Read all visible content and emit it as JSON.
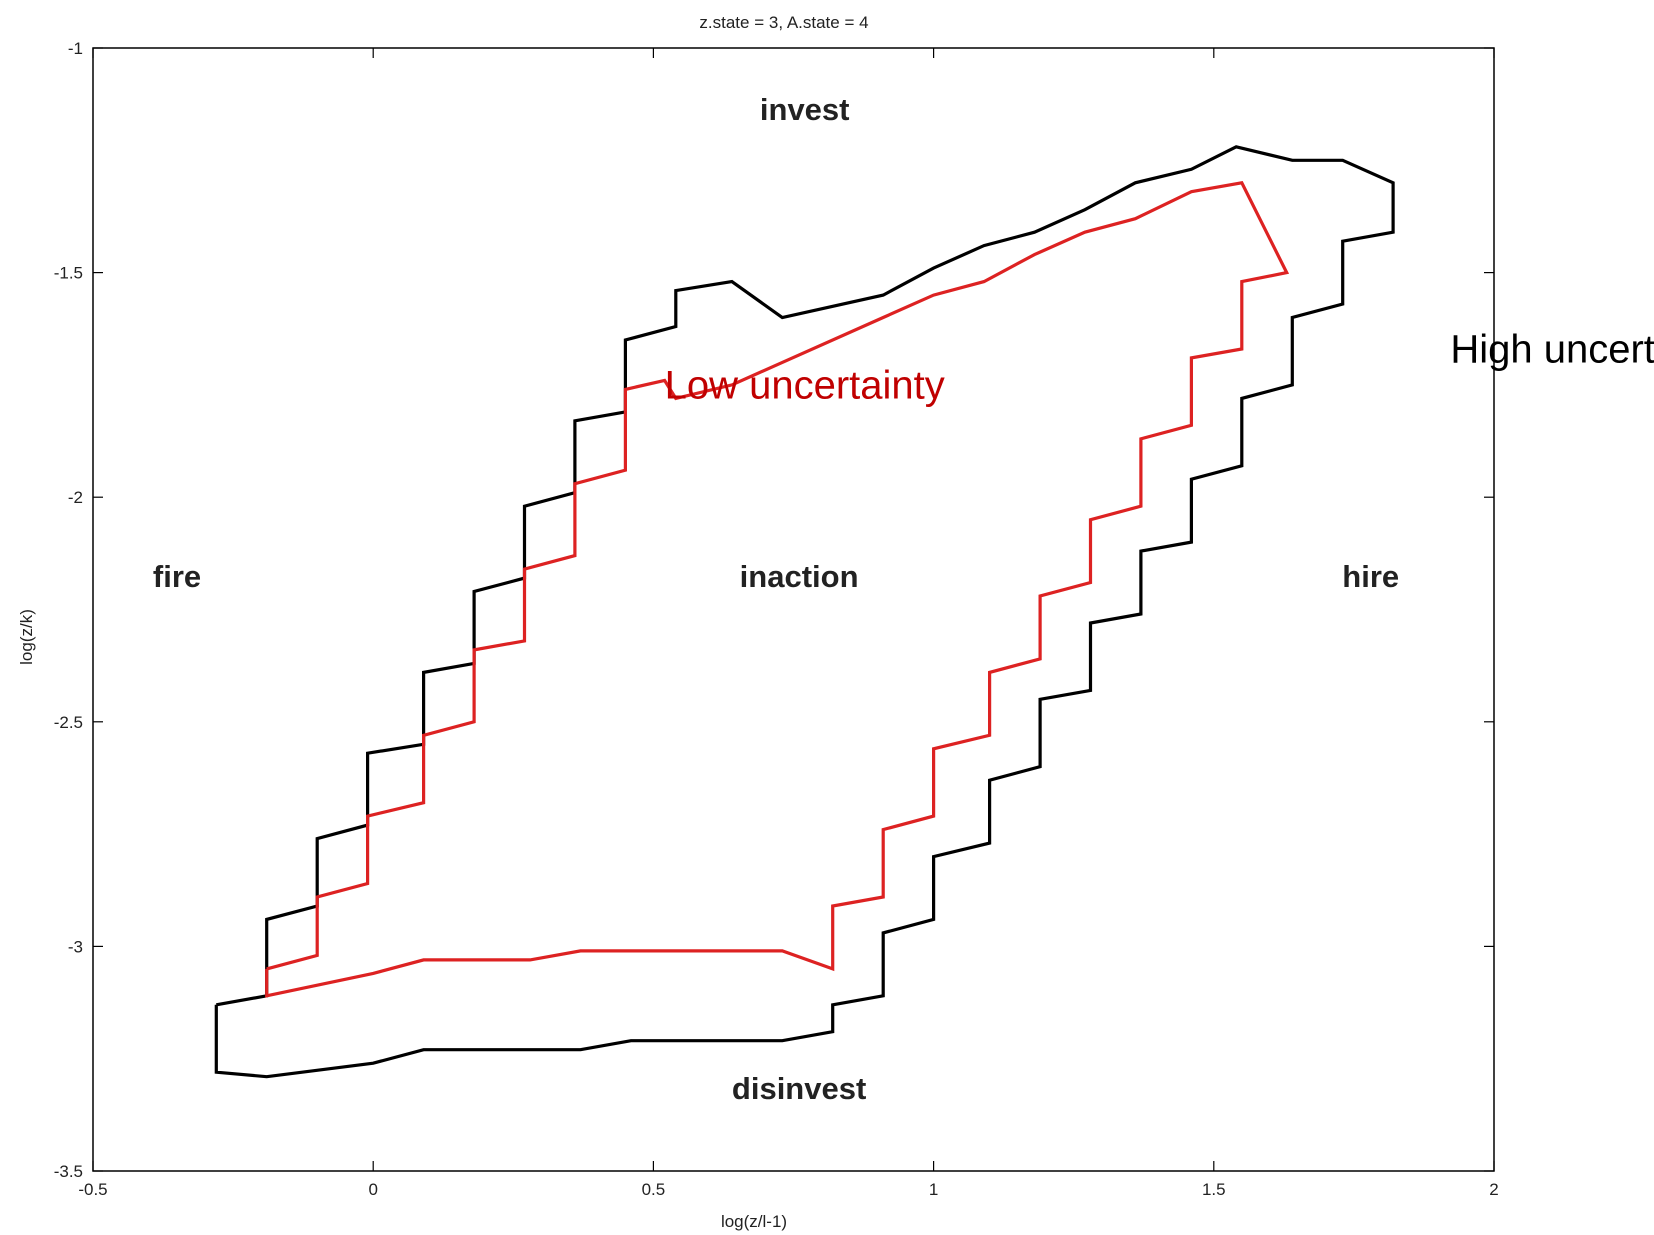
{
  "chart_data": {
    "type": "line",
    "title": "z.state = 3, A.state = 4",
    "xlabel": "log(z/l-1)",
    "ylabel": "log(z/k)",
    "xlim": [
      -0.5,
      2
    ],
    "ylim": [
      -3.5,
      -1
    ],
    "xticks": [
      -0.5,
      0,
      0.5,
      1,
      1.5,
      2
    ],
    "xtick_labels": [
      "-0.5",
      "0",
      "0.5",
      "1",
      "1.5",
      "2"
    ],
    "yticks": [
      -1,
      -1.5,
      -2,
      -2.5,
      -3,
      -3.5
    ],
    "ytick_labels": [
      "-1",
      "-1.5",
      "-2",
      "-2.5",
      "-3",
      "-3.5"
    ],
    "grid": false,
    "regions": [
      {
        "key": "invest",
        "label": "invest",
        "x": 0.77,
        "y": -1.16
      },
      {
        "key": "fire",
        "label": "fire",
        "x": -0.35,
        "y": -2.2
      },
      {
        "key": "inaction",
        "label": "inaction",
        "x": 0.76,
        "y": -2.2
      },
      {
        "key": "hire",
        "label": "hire",
        "x": 1.78,
        "y": -2.2
      },
      {
        "key": "disinvest",
        "label": "disinvest",
        "x": 0.76,
        "y": -3.34
      }
    ],
    "annotations": [
      {
        "key": "low",
        "text": "Low uncertainty",
        "color": "#c00000",
        "x": 0.77,
        "y": -1.78
      },
      {
        "key": "high",
        "text": "High uncertainty",
        "color": "#000000",
        "x": 2.18,
        "y": -1.7
      }
    ],
    "series": [
      {
        "name": "High uncertainty",
        "color": "#000000",
        "points": [
          [
            -0.28,
            -3.13
          ],
          [
            -0.19,
            -3.11
          ],
          [
            -0.19,
            -2.94
          ],
          [
            -0.1,
            -2.91
          ],
          [
            -0.1,
            -2.76
          ],
          [
            -0.01,
            -2.73
          ],
          [
            -0.01,
            -2.57
          ],
          [
            0.09,
            -2.55
          ],
          [
            0.09,
            -2.39
          ],
          [
            0.18,
            -2.37
          ],
          [
            0.18,
            -2.21
          ],
          [
            0.27,
            -2.18
          ],
          [
            0.27,
            -2.02
          ],
          [
            0.36,
            -1.99
          ],
          [
            0.36,
            -1.83
          ],
          [
            0.45,
            -1.81
          ],
          [
            0.45,
            -1.65
          ],
          [
            0.54,
            -1.62
          ],
          [
            0.54,
            -1.54
          ],
          [
            0.64,
            -1.52
          ],
          [
            0.73,
            -1.6
          ],
          [
            0.91,
            -1.55
          ],
          [
            1.0,
            -1.49
          ],
          [
            1.09,
            -1.44
          ],
          [
            1.18,
            -1.41
          ],
          [
            1.27,
            -1.36
          ],
          [
            1.36,
            -1.3
          ],
          [
            1.46,
            -1.27
          ],
          [
            1.54,
            -1.22
          ],
          [
            1.64,
            -1.25
          ],
          [
            1.73,
            -1.25
          ],
          [
            1.82,
            -1.3
          ],
          [
            1.82,
            -1.41
          ],
          [
            1.73,
            -1.43
          ],
          [
            1.73,
            -1.57
          ],
          [
            1.64,
            -1.6
          ],
          [
            1.64,
            -1.75
          ],
          [
            1.55,
            -1.78
          ],
          [
            1.55,
            -1.93
          ],
          [
            1.46,
            -1.96
          ],
          [
            1.46,
            -2.1
          ],
          [
            1.37,
            -2.12
          ],
          [
            1.37,
            -2.26
          ],
          [
            1.28,
            -2.28
          ],
          [
            1.28,
            -2.43
          ],
          [
            1.19,
            -2.45
          ],
          [
            1.19,
            -2.6
          ],
          [
            1.1,
            -2.63
          ],
          [
            1.1,
            -2.77
          ],
          [
            1.0,
            -2.8
          ],
          [
            1.0,
            -2.94
          ],
          [
            0.91,
            -2.97
          ],
          [
            0.91,
            -3.11
          ],
          [
            0.82,
            -3.13
          ],
          [
            0.82,
            -3.19
          ],
          [
            0.73,
            -3.21
          ],
          [
            0.55,
            -3.21
          ],
          [
            0.46,
            -3.21
          ],
          [
            0.37,
            -3.23
          ],
          [
            0.28,
            -3.23
          ],
          [
            0.09,
            -3.23
          ],
          [
            0.0,
            -3.26
          ],
          [
            -0.19,
            -3.29
          ],
          [
            -0.28,
            -3.28
          ],
          [
            -0.28,
            -3.13
          ]
        ]
      },
      {
        "name": "Low uncertainty",
        "color": "#dd2222",
        "points": [
          [
            -0.19,
            -3.05
          ],
          [
            -0.1,
            -3.02
          ],
          [
            -0.1,
            -2.89
          ],
          [
            -0.01,
            -2.86
          ],
          [
            -0.01,
            -2.71
          ],
          [
            0.09,
            -2.68
          ],
          [
            0.09,
            -2.53
          ],
          [
            0.18,
            -2.5
          ],
          [
            0.18,
            -2.34
          ],
          [
            0.27,
            -2.32
          ],
          [
            0.27,
            -2.16
          ],
          [
            0.36,
            -2.13
          ],
          [
            0.36,
            -1.97
          ],
          [
            0.45,
            -1.94
          ],
          [
            0.45,
            -1.76
          ],
          [
            0.52,
            -1.74
          ],
          [
            0.54,
            -1.78
          ],
          [
            0.64,
            -1.75
          ],
          [
            0.73,
            -1.7
          ],
          [
            0.91,
            -1.6
          ],
          [
            1.0,
            -1.55
          ],
          [
            1.09,
            -1.52
          ],
          [
            1.18,
            -1.46
          ],
          [
            1.27,
            -1.41
          ],
          [
            1.36,
            -1.38
          ],
          [
            1.46,
            -1.32
          ],
          [
            1.55,
            -1.3
          ],
          [
            1.63,
            -1.5
          ],
          [
            1.55,
            -1.52
          ],
          [
            1.55,
            -1.67
          ],
          [
            1.46,
            -1.69
          ],
          [
            1.46,
            -1.84
          ],
          [
            1.37,
            -1.87
          ],
          [
            1.37,
            -2.02
          ],
          [
            1.28,
            -2.05
          ],
          [
            1.28,
            -2.19
          ],
          [
            1.19,
            -2.22
          ],
          [
            1.19,
            -2.36
          ],
          [
            1.1,
            -2.39
          ],
          [
            1.1,
            -2.53
          ],
          [
            1.0,
            -2.56
          ],
          [
            1.0,
            -2.71
          ],
          [
            0.91,
            -2.74
          ],
          [
            0.91,
            -2.89
          ],
          [
            0.82,
            -2.91
          ],
          [
            0.82,
            -3.05
          ],
          [
            0.73,
            -3.01
          ],
          [
            0.55,
            -3.01
          ],
          [
            0.46,
            -3.01
          ],
          [
            0.37,
            -3.01
          ],
          [
            0.28,
            -3.03
          ],
          [
            0.09,
            -3.03
          ],
          [
            0.0,
            -3.06
          ],
          [
            -0.19,
            -3.11
          ],
          [
            -0.19,
            -3.05
          ]
        ]
      }
    ]
  }
}
